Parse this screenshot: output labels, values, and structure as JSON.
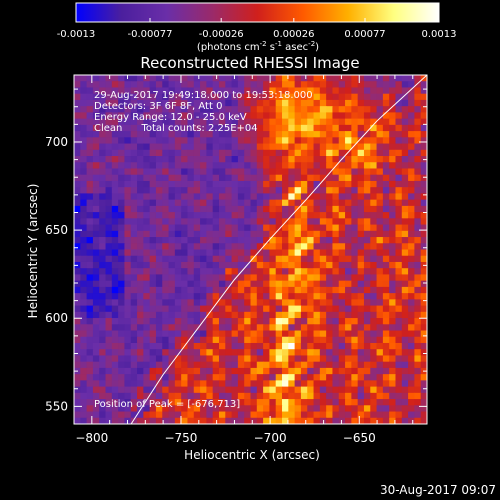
{
  "chart_data": {
    "type": "heatmap",
    "title": "Reconstructed RHESSI Image",
    "xlabel": "Heliocentric X (arcsec)",
    "ylabel": "Heliocentric Y (arcsec)",
    "xlim": [
      -810,
      -612
    ],
    "ylim": [
      540,
      738
    ],
    "x_ticks": [
      -800,
      -750,
      -700,
      -650
    ],
    "y_ticks": [
      550,
      600,
      650,
      700
    ],
    "annotations": [
      "29-Aug-2017 19:49:18.000 to 19:53:18.000",
      "Detectors: 3F 6F 8F, Att 0",
      "Energy Range: 12.0 - 25.0 keV",
      "Clean      Total counts: 2.25E+04"
    ],
    "peak_label": "Position of Peak = [-676,713]",
    "peak": [
      -676,
      713
    ],
    "limb_curve": [
      [
        -778,
        540
      ],
      [
        -760,
        568
      ],
      [
        -740,
        595
      ],
      [
        -720,
        622
      ],
      [
        -700,
        645
      ],
      [
        -680,
        667
      ],
      [
        -660,
        690
      ],
      [
        -640,
        712
      ],
      [
        -612,
        738
      ]
    ],
    "colorbar": {
      "min": -0.0013,
      "max": 0.0013,
      "tick_values": [
        -0.0013,
        -0.00077,
        -0.00026,
        0.00026,
        0.00077,
        0.0013
      ],
      "tick_labels": [
        "-0.0013",
        "-0.00077",
        "-0.00026",
        "0.00026",
        "0.00077",
        "0.0013"
      ],
      "label_text": "(photons cm",
      "label_sup1": "-2",
      "label_mid1": " s",
      "label_sup2": "-1",
      "label_mid2": " asec",
      "label_sup3": "-2",
      "label_end": ")"
    },
    "grid": false,
    "colormap": [
      "#0000ff",
      "#4b1f9e",
      "#6a2ea8",
      "#9a2a6a",
      "#d0201c",
      "#ff5a00",
      "#ffb000",
      "#ffff80",
      "#ffffff"
    ]
  },
  "footer": {
    "timestamp": "30-Aug-2017 09:07"
  }
}
